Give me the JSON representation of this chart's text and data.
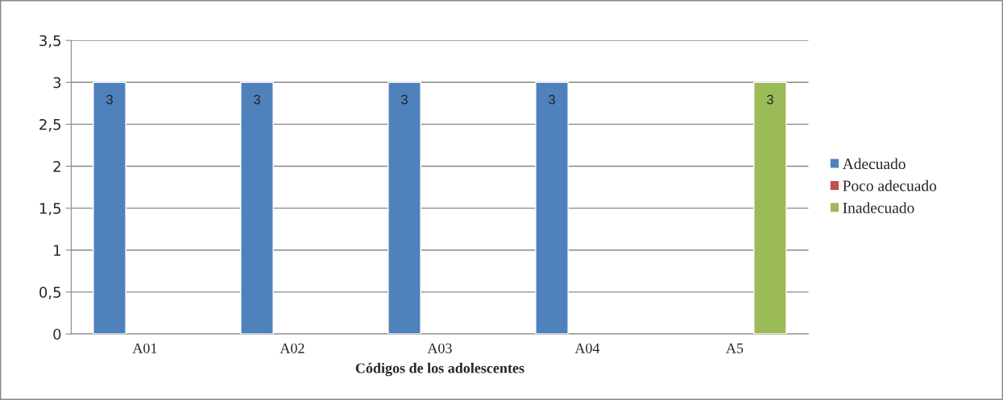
{
  "chart_data": {
    "type": "bar",
    "xlabel": "Códigos de los adolescentes",
    "categories": [
      "A01",
      "A02",
      "A03",
      "A04",
      "A5"
    ],
    "series": [
      {
        "name": "Adecuado",
        "color": "#4f81bd",
        "values": [
          3,
          3,
          3,
          3,
          null
        ]
      },
      {
        "name": "Poco adecuado",
        "color": "#c0504d",
        "values": [
          null,
          null,
          null,
          null,
          null
        ]
      },
      {
        "name": "Inadecuado",
        "color": "#9bbb59",
        "values": [
          null,
          null,
          null,
          null,
          3
        ]
      }
    ],
    "ylim": [
      0,
      3.5
    ],
    "yticks": [
      0,
      {
        "value": 0.5,
        "label": "0,5"
      },
      1,
      {
        "value": 1.5,
        "label": "1,5"
      },
      2,
      {
        "value": 2.5,
        "label": "2,5"
      },
      3,
      {
        "value": 3.5,
        "label": "3,5"
      }
    ],
    "grid": "y",
    "legend": "right",
    "data_labels": true
  }
}
